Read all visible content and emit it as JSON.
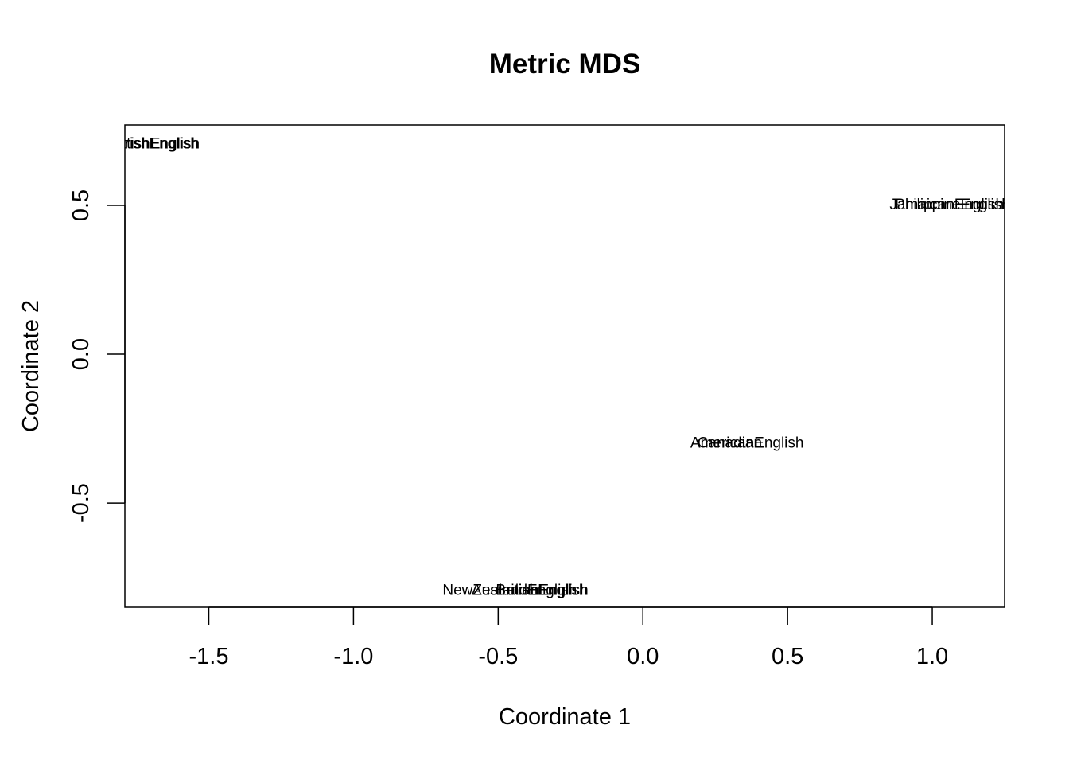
{
  "chart_data": {
    "type": "scatter",
    "title": "Metric MDS",
    "xlabel": "Coordinate 1",
    "ylabel": "Coordinate 2",
    "xlim": [
      -1.79,
      1.25
    ],
    "ylim": [
      -0.85,
      0.77
    ],
    "xticks": [
      -1.5,
      -1.0,
      -0.5,
      0.0,
      0.5,
      1.0
    ],
    "xtick_labels": [
      "-1.5",
      "-1.0",
      "-0.5",
      "0.0",
      "0.5",
      "1.0"
    ],
    "yticks": [
      -0.5,
      0.0,
      0.5
    ],
    "ytick_labels": [
      "-0.5",
      "0.0",
      "0.5"
    ],
    "grid": false,
    "points": [
      {
        "x": -1.67,
        "y": 0.71,
        "label": "IrishEnglish"
      },
      {
        "x": -1.71,
        "y": 0.71,
        "label": "ScottishEnglish"
      },
      {
        "x": 1.07,
        "y": 0.505,
        "label": "PhilippineEnglish"
      },
      {
        "x": 1.05,
        "y": 0.505,
        "label": "JamaicanEnglish"
      },
      {
        "x": 0.36,
        "y": -0.295,
        "label": "AmericanEnglish"
      },
      {
        "x": 0.3,
        "y": -0.295,
        "label": "Canadian"
      },
      {
        "x": -0.46,
        "y": -0.79,
        "label": "NewZealandEnglish"
      },
      {
        "x": -0.39,
        "y": -0.79,
        "label": "AustralianEnglish"
      },
      {
        "x": -0.35,
        "y": -0.79,
        "label": "BritishEnglish"
      }
    ]
  }
}
